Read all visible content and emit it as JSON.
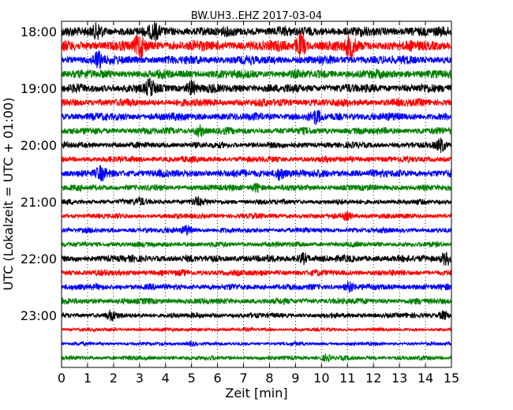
{
  "chart_data": {
    "type": "line",
    "title": "BW.UH3..EHZ 2017-03-04",
    "xlabel": "Zeit  [min]",
    "ylabel": "UTC (Lokalzeit = UTC + 01:00)",
    "xlim": [
      0,
      15
    ],
    "x_ticks": [
      "0",
      "1",
      "2",
      "3",
      "4",
      "5",
      "6",
      "7",
      "8",
      "9",
      "10",
      "11",
      "12",
      "13",
      "14",
      "15"
    ],
    "y_ticks": [
      "18:00",
      "19:00",
      "20:00",
      "21:00",
      "22:00",
      "23:00"
    ],
    "y_tick_rows": [
      0,
      4,
      8,
      12,
      16,
      20
    ],
    "grid": "x-dotted",
    "row_colors": [
      "#000000",
      "#ff0000",
      "#0000ff",
      "#008000"
    ],
    "row_count": 24,
    "row_amplitudes": [
      0.55,
      0.6,
      0.5,
      0.5,
      0.5,
      0.45,
      0.45,
      0.4,
      0.35,
      0.35,
      0.45,
      0.35,
      0.3,
      0.3,
      0.3,
      0.3,
      0.4,
      0.35,
      0.35,
      0.35,
      0.3,
      0.2,
      0.2,
      0.25
    ],
    "events": [
      {
        "row": 0,
        "t": 1.4,
        "amp": 1.0
      },
      {
        "row": 0,
        "t": 3.6,
        "amp": 1.0
      },
      {
        "row": 1,
        "t": 3.0,
        "amp": 1.5
      },
      {
        "row": 1,
        "t": 9.2,
        "amp": 1.6
      },
      {
        "row": 1,
        "t": 11.1,
        "amp": 1.4
      },
      {
        "row": 2,
        "t": 1.4,
        "amp": 1.4
      },
      {
        "row": 4,
        "t": 3.4,
        "amp": 1.3
      },
      {
        "row": 4,
        "t": 5.0,
        "amp": 1.1
      },
      {
        "row": 6,
        "t": 9.8,
        "amp": 1.0
      },
      {
        "row": 7,
        "t": 5.3,
        "amp": 1.0
      },
      {
        "row": 8,
        "t": 14.6,
        "amp": 1.6
      },
      {
        "row": 10,
        "t": 1.5,
        "amp": 1.0
      },
      {
        "row": 10,
        "t": 8.4,
        "amp": 1.1
      },
      {
        "row": 11,
        "t": 7.5,
        "amp": 1.0
      },
      {
        "row": 12,
        "t": 3.0,
        "amp": 1.0
      },
      {
        "row": 12,
        "t": 5.2,
        "amp": 1.0
      },
      {
        "row": 13,
        "t": 11.0,
        "amp": 1.0
      },
      {
        "row": 14,
        "t": 4.8,
        "amp": 1.3
      },
      {
        "row": 16,
        "t": 9.3,
        "amp": 1.0
      },
      {
        "row": 16,
        "t": 14.8,
        "amp": 1.4
      },
      {
        "row": 18,
        "t": 11.1,
        "amp": 1.1
      },
      {
        "row": 20,
        "t": 1.9,
        "amp": 1.2
      },
      {
        "row": 20,
        "t": 14.7,
        "amp": 1.2
      },
      {
        "row": 22,
        "t": 5.0,
        "amp": 0.9
      },
      {
        "row": 23,
        "t": 10.2,
        "amp": 1.0
      }
    ]
  }
}
